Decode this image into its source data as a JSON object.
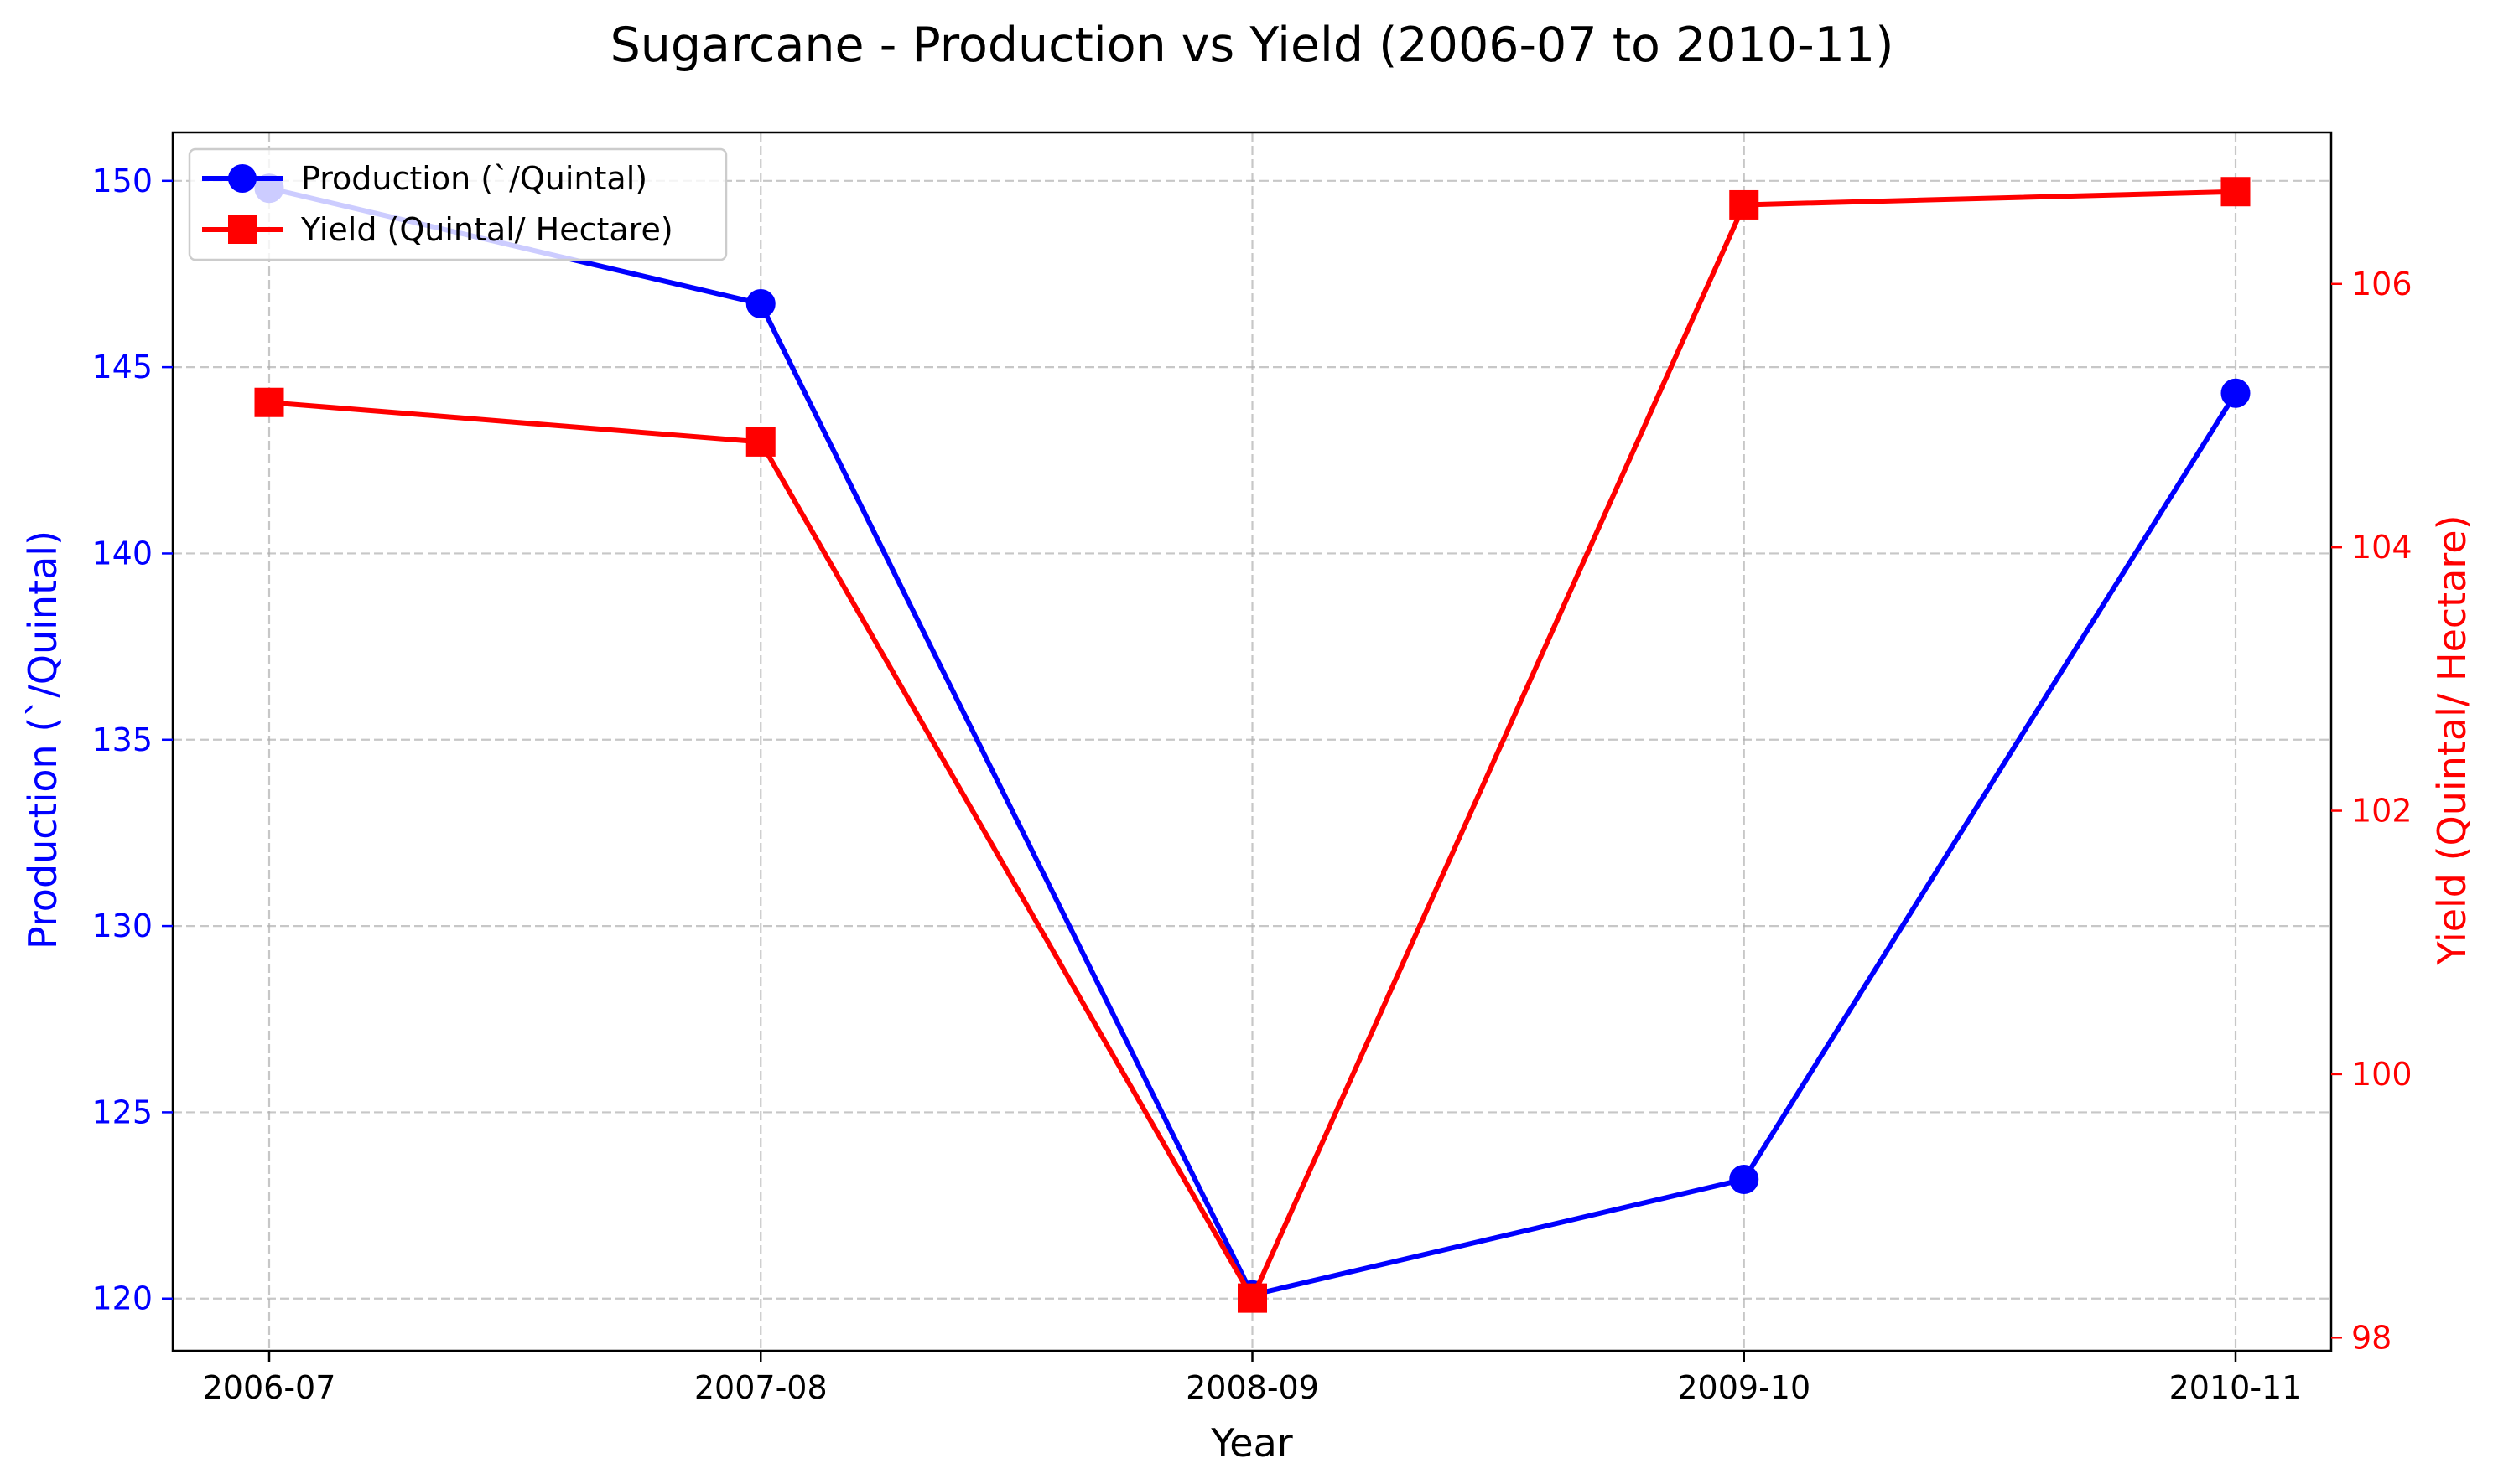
{
  "chart_data": {
    "type": "line",
    "title": "Sugarcane - Production vs Yield (2006-07 to 2010-11)",
    "xlabel": "Year",
    "categories": [
      "2006-07",
      "2007-08",
      "2008-09",
      "2009-10",
      "2010-11"
    ],
    "series": [
      {
        "name": "Production (`/Quintal)",
        "axis": "left",
        "color": "#0000ff",
        "marker": "circle",
        "values": [
          149.8,
          146.7,
          120.1,
          123.2,
          144.3
        ]
      },
      {
        "name": "Yield (Quintal/ Hectare)",
        "axis": "right",
        "color": "#ff0000",
        "marker": "square",
        "values": [
          105.1,
          104.8,
          98.3,
          106.6,
          106.7
        ]
      }
    ],
    "y_left": {
      "label": "Production (`/Quintal)",
      "color": "#0000ff",
      "ylim": [
        118.6,
        151.3
      ],
      "ticks": [
        120,
        125,
        130,
        135,
        140,
        145,
        150
      ]
    },
    "y_right": {
      "label": "Yield (Quintal/ Hectare)",
      "color": "#ff0000",
      "ylim": [
        97.9,
        107.15
      ],
      "ticks": [
        98,
        100,
        102,
        104,
        106
      ]
    },
    "grid": true,
    "legend_position": "top-left"
  }
}
